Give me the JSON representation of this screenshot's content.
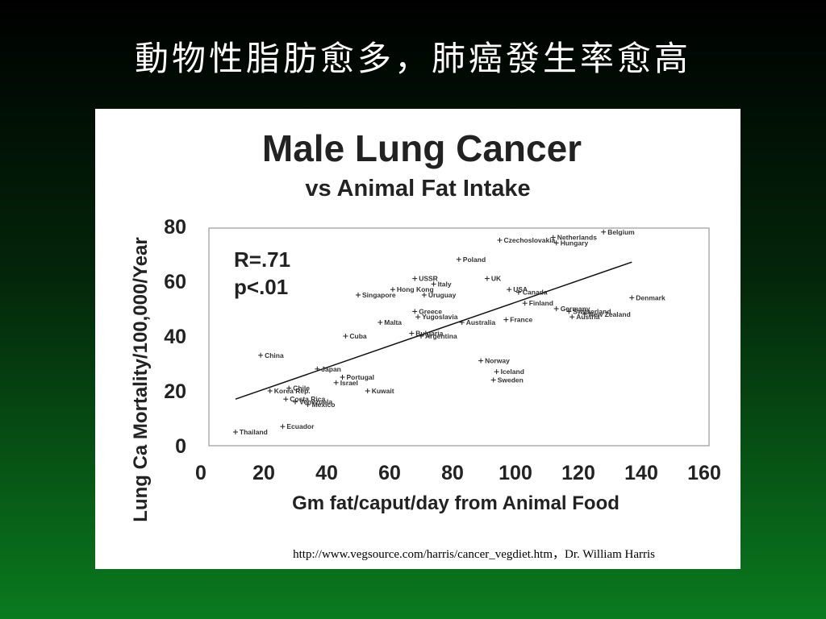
{
  "slide": {
    "title": "動物性脂肪愈多，肺癌發生率愈高",
    "source": "http://www.vegsource.com/harris/cancer_vegdiet.htm，Dr. William Harris"
  },
  "chart_data": {
    "type": "scatter",
    "title": "Male Lung Cancer",
    "subtitle": "vs Animal Fat Intake",
    "xlabel": "Gm fat/caput/day from Animal Food",
    "ylabel": "Lung Ca Mortality/100,000/Year",
    "xlim": [
      0,
      160
    ],
    "ylim": [
      0,
      80
    ],
    "xticks": [
      0,
      20,
      40,
      60,
      80,
      100,
      120,
      140,
      160
    ],
    "yticks": [
      0,
      20,
      40,
      60,
      80
    ],
    "grid": false,
    "annotation": [
      "R=.71",
      "p<.01"
    ],
    "trendline": {
      "x": [
        11,
        137
      ],
      "y": [
        17,
        67
      ]
    },
    "points": [
      {
        "label": "Thailand",
        "x": 11,
        "y": 5
      },
      {
        "label": "Ecuador",
        "x": 26,
        "y": 7
      },
      {
        "label": "China",
        "x": 19,
        "y": 33
      },
      {
        "label": "Korea Rep.",
        "x": 22,
        "y": 20
      },
      {
        "label": "Chile",
        "x": 28,
        "y": 21
      },
      {
        "label": "Costa Rica",
        "x": 27,
        "y": 17
      },
      {
        "label": "Venezuela",
        "x": 30,
        "y": 16
      },
      {
        "label": "Mexico",
        "x": 34,
        "y": 15
      },
      {
        "label": "Japan",
        "x": 37,
        "y": 28
      },
      {
        "label": "Portugal",
        "x": 45,
        "y": 25
      },
      {
        "label": "Israel",
        "x": 43,
        "y": 23
      },
      {
        "label": "Kuwait",
        "x": 53,
        "y": 20
      },
      {
        "label": "Cuba",
        "x": 46,
        "y": 40
      },
      {
        "label": "Malta",
        "x": 57,
        "y": 45
      },
      {
        "label": "Singapore",
        "x": 50,
        "y": 55
      },
      {
        "label": "Hong Kong",
        "x": 61,
        "y": 57
      },
      {
        "label": "USSR",
        "x": 68,
        "y": 61
      },
      {
        "label": "Italy",
        "x": 74,
        "y": 59
      },
      {
        "label": "Uruguay",
        "x": 71,
        "y": 55
      },
      {
        "label": "Greece",
        "x": 68,
        "y": 49
      },
      {
        "label": "Yugoslavia",
        "x": 69,
        "y": 47
      },
      {
        "label": "Bulgaria",
        "x": 67,
        "y": 41
      },
      {
        "label": "Argentina",
        "x": 70,
        "y": 40
      },
      {
        "label": "Poland",
        "x": 82,
        "y": 68
      },
      {
        "label": "Australia",
        "x": 83,
        "y": 45
      },
      {
        "label": "UK",
        "x": 91,
        "y": 61
      },
      {
        "label": "USA",
        "x": 98,
        "y": 57
      },
      {
        "label": "Canada",
        "x": 101,
        "y": 56
      },
      {
        "label": "France",
        "x": 97,
        "y": 46
      },
      {
        "label": "Finland",
        "x": 103,
        "y": 52
      },
      {
        "label": "Czechoslovakia",
        "x": 95,
        "y": 75
      },
      {
        "label": "Netherlands",
        "x": 112,
        "y": 76
      },
      {
        "label": "Hungary",
        "x": 113,
        "y": 74
      },
      {
        "label": "Belgium",
        "x": 128,
        "y": 78
      },
      {
        "label": "Denmark",
        "x": 137,
        "y": 54
      },
      {
        "label": "Germany",
        "x": 113,
        "y": 50
      },
      {
        "label": "Switzerland",
        "x": 117,
        "y": 49
      },
      {
        "label": "New Zealand",
        "x": 122,
        "y": 48
      },
      {
        "label": "Austria",
        "x": 118,
        "y": 47
      },
      {
        "label": "Norway",
        "x": 89,
        "y": 31
      },
      {
        "label": "Iceland",
        "x": 94,
        "y": 27
      },
      {
        "label": "Sweden",
        "x": 93,
        "y": 24
      }
    ]
  }
}
